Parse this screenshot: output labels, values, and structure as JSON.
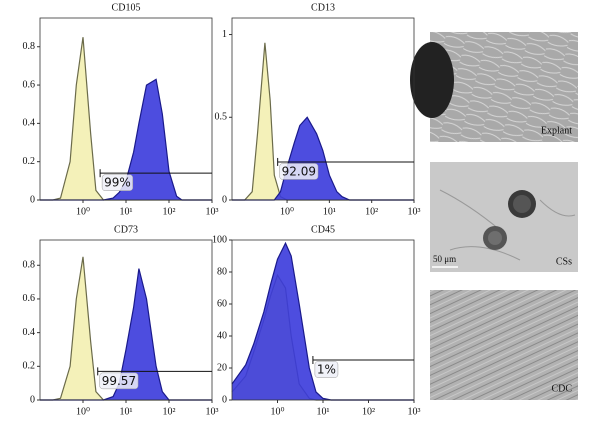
{
  "chart_data": [
    {
      "type": "area",
      "title": "CD105",
      "xscale": "log",
      "xlim": [
        0.1,
        1000
      ],
      "ylim": [
        0,
        0.95
      ],
      "xticks": [
        {
          "value": 1,
          "label": "10⁰"
        },
        {
          "value": 10,
          "label": "10¹"
        },
        {
          "value": 100,
          "label": "10²"
        },
        {
          "value": 1000,
          "label": "10³"
        }
      ],
      "yticks": [
        0,
        0.2,
        0.4,
        0.6,
        0.8
      ],
      "x": [
        0.1,
        0.2,
        0.3,
        0.5,
        0.7,
        1,
        1.5,
        2,
        3,
        5,
        7,
        10,
        15,
        20,
        30,
        50,
        70,
        100,
        150,
        200,
        300,
        500,
        1000
      ],
      "series": [
        {
          "color": "#f4f1b9",
          "values": [
            0,
            0,
            0.01,
            0.2,
            0.6,
            0.85,
            0.35,
            0.05,
            0,
            0,
            0,
            0,
            0,
            0,
            0,
            0,
            0,
            0,
            0,
            0,
            0,
            0,
            0
          ]
        },
        {
          "color": "#3a3adc",
          "values": [
            0,
            0,
            0,
            0,
            0,
            0,
            0,
            0,
            0,
            0.01,
            0.04,
            0.1,
            0.25,
            0.4,
            0.6,
            0.63,
            0.45,
            0.15,
            0.02,
            0,
            0,
            0,
            0
          ]
        }
      ],
      "gate": {
        "x": 2.5,
        "y": 0.14,
        "label": "99%"
      }
    },
    {
      "type": "area",
      "title": "CD13",
      "xscale": "log",
      "xlim": [
        0.05,
        1000
      ],
      "ylim": [
        0,
        1.1
      ],
      "xticks": [
        {
          "value": 1,
          "label": "10⁰"
        },
        {
          "value": 10,
          "label": "10¹"
        },
        {
          "value": 100,
          "label": "10²"
        },
        {
          "value": 1000,
          "label": "10³"
        }
      ],
      "yticks": [
        0,
        0.5,
        1
      ],
      "x": [
        0.05,
        0.1,
        0.15,
        0.2,
        0.3,
        0.4,
        0.5,
        0.7,
        1,
        1.5,
        2,
        3,
        5,
        7,
        10,
        15,
        20,
        30,
        100,
        1000
      ],
      "series": [
        {
          "color": "#f4f1b9",
          "values": [
            0,
            0,
            0.05,
            0.4,
            0.95,
            0.6,
            0.15,
            0.02,
            0,
            0,
            0,
            0,
            0,
            0,
            0,
            0,
            0,
            0,
            0,
            0
          ]
        },
        {
          "color": "#3a3adc",
          "values": [
            0,
            0,
            0,
            0,
            0,
            0,
            0,
            0.05,
            0.2,
            0.35,
            0.45,
            0.5,
            0.4,
            0.3,
            0.15,
            0.05,
            0.02,
            0,
            0,
            0
          ]
        }
      ],
      "gate": {
        "x": 0.6,
        "y": 0.23,
        "label": "92.09"
      }
    },
    {
      "type": "area",
      "title": "CD73",
      "xscale": "log",
      "xlim": [
        0.1,
        1000
      ],
      "ylim": [
        0,
        0.95
      ],
      "xticks": [
        {
          "value": 1,
          "label": "10⁰"
        },
        {
          "value": 10,
          "label": "10¹"
        },
        {
          "value": 100,
          "label": "10²"
        },
        {
          "value": 1000,
          "label": "10³"
        }
      ],
      "yticks": [
        0,
        0.2,
        0.4,
        0.6,
        0.8
      ],
      "x": [
        0.1,
        0.2,
        0.3,
        0.5,
        0.7,
        1,
        1.5,
        2,
        3,
        5,
        7,
        10,
        15,
        20,
        30,
        50,
        70,
        100,
        1000
      ],
      "series": [
        {
          "color": "#f4f1b9",
          "values": [
            0,
            0,
            0.01,
            0.2,
            0.6,
            0.85,
            0.35,
            0.05,
            0,
            0,
            0,
            0,
            0,
            0,
            0,
            0,
            0,
            0,
            0
          ]
        },
        {
          "color": "#3a3adc",
          "values": [
            0,
            0,
            0,
            0,
            0,
            0,
            0,
            0,
            0,
            0.02,
            0.1,
            0.3,
            0.55,
            0.78,
            0.6,
            0.2,
            0.05,
            0,
            0
          ]
        }
      ],
      "gate": {
        "x": 2.2,
        "y": 0.17,
        "label": "99.57"
      }
    },
    {
      "type": "area",
      "title": "CD45",
      "xscale": "log",
      "xlim": [
        0.1,
        1000
      ],
      "ylim": [
        0,
        100
      ],
      "xticks": [
        {
          "value": 1,
          "label": "10⁰"
        },
        {
          "value": 10,
          "label": "10¹"
        },
        {
          "value": 100,
          "label": "10²"
        },
        {
          "value": 1000,
          "label": "10³"
        }
      ],
      "yticks": [
        0,
        20,
        40,
        60,
        80,
        100
      ],
      "x": [
        0.1,
        0.2,
        0.3,
        0.5,
        0.7,
        1,
        1.5,
        2,
        3,
        5,
        7,
        10,
        15,
        100,
        1000
      ],
      "series": [
        {
          "color": "#f4f1b9",
          "values": [
            5,
            15,
            30,
            50,
            65,
            78,
            70,
            40,
            10,
            1,
            0,
            0,
            0,
            0,
            0
          ]
        },
        {
          "color": "#3a3adc",
          "values": [
            10,
            22,
            35,
            55,
            72,
            88,
            98,
            90,
            60,
            20,
            5,
            1,
            0,
            0,
            0
          ]
        }
      ],
      "gate": {
        "x": 6,
        "y": 25,
        "label": "1%"
      }
    }
  ],
  "images": [
    {
      "label": "Explant"
    },
    {
      "label": "CSs",
      "scale_label": "50 μm"
    },
    {
      "label": "CDC"
    }
  ]
}
